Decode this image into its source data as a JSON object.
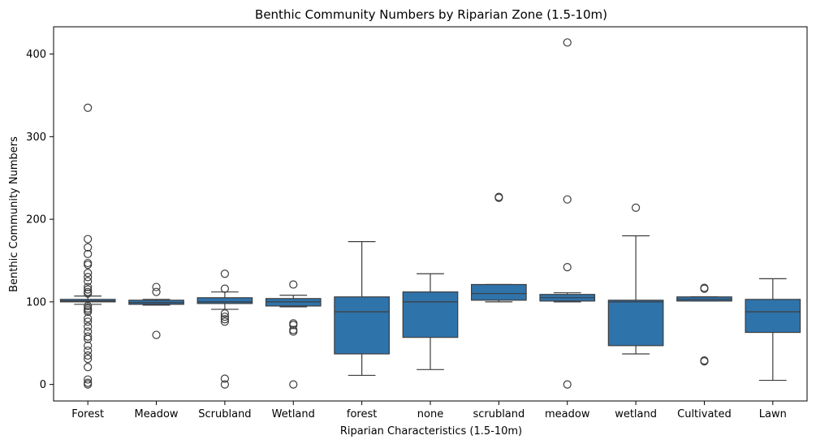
{
  "chart_data": {
    "type": "box",
    "title": "Benthic Community Numbers by Riparian Zone (1.5-10m)",
    "xlabel": "Riparian Characteristics (1.5-10m)",
    "ylabel": "Benthic Community Numbers",
    "ylim": [
      -20,
      433
    ],
    "yticks": [
      0,
      100,
      200,
      300,
      400
    ],
    "grid": false,
    "colors": {
      "box": "#2f73ab",
      "line": "#3d3d3d"
    },
    "categories": [
      "Forest",
      "Meadow",
      "Scrubland",
      "Wetland",
      "forest",
      "none",
      "scrubland",
      "meadow",
      "wetland",
      "Cultivated",
      "Lawn"
    ],
    "boxes": [
      {
        "category": "Forest",
        "q1": 100,
        "median": 101,
        "q3": 103,
        "whisker_low": 97,
        "whisker_high": 107,
        "outliers": [
          335,
          176,
          166,
          158,
          147,
          145,
          135,
          130,
          125,
          118,
          115,
          112,
          110,
          95,
          92,
          90,
          88,
          80,
          76,
          70,
          64,
          58,
          55,
          47,
          41,
          35,
          31,
          21,
          6,
          2,
          0
        ]
      },
      {
        "category": "Meadow",
        "q1": 97,
        "median": 99,
        "q3": 102,
        "whisker_low": 96,
        "whisker_high": 103,
        "outliers": [
          118,
          112,
          60
        ]
      },
      {
        "category": "Scrubland",
        "q1": 98,
        "median": 100,
        "q3": 105,
        "whisker_low": 91,
        "whisker_high": 112,
        "outliers": [
          134,
          116,
          86,
          82,
          79,
          76,
          7,
          0
        ]
      },
      {
        "category": "Wetland",
        "q1": 95,
        "median": 100,
        "q3": 104,
        "whisker_low": 94,
        "whisker_high": 108,
        "outliers": [
          121,
          74,
          72,
          66,
          64,
          0
        ]
      },
      {
        "category": "forest",
        "q1": 37,
        "median": 88,
        "q3": 106,
        "whisker_low": 11,
        "whisker_high": 173,
        "outliers": []
      },
      {
        "category": "none",
        "q1": 57,
        "median": 100,
        "q3": 112,
        "whisker_low": 18,
        "whisker_high": 134,
        "outliers": []
      },
      {
        "category": "scrubland",
        "q1": 102,
        "median": 110,
        "q3": 121,
        "whisker_low": 100,
        "whisker_high": 121,
        "outliers": [
          227,
          226
        ]
      },
      {
        "category": "meadow",
        "q1": 101,
        "median": 105,
        "q3": 109,
        "whisker_low": 100,
        "whisker_high": 111,
        "outliers": [
          414,
          224,
          142,
          0
        ]
      },
      {
        "category": "wetland",
        "q1": 47,
        "median": 100,
        "q3": 102,
        "whisker_low": 37,
        "whisker_high": 180,
        "outliers": [
          214
        ]
      },
      {
        "category": "Cultivated",
        "q1": 101,
        "median": 103,
        "q3": 106,
        "whisker_low": 101,
        "whisker_high": 106,
        "outliers": [
          117,
          116,
          29,
          28
        ]
      },
      {
        "category": "Lawn",
        "q1": 63,
        "median": 88,
        "q3": 103,
        "whisker_low": 5,
        "whisker_high": 128,
        "outliers": []
      }
    ]
  }
}
